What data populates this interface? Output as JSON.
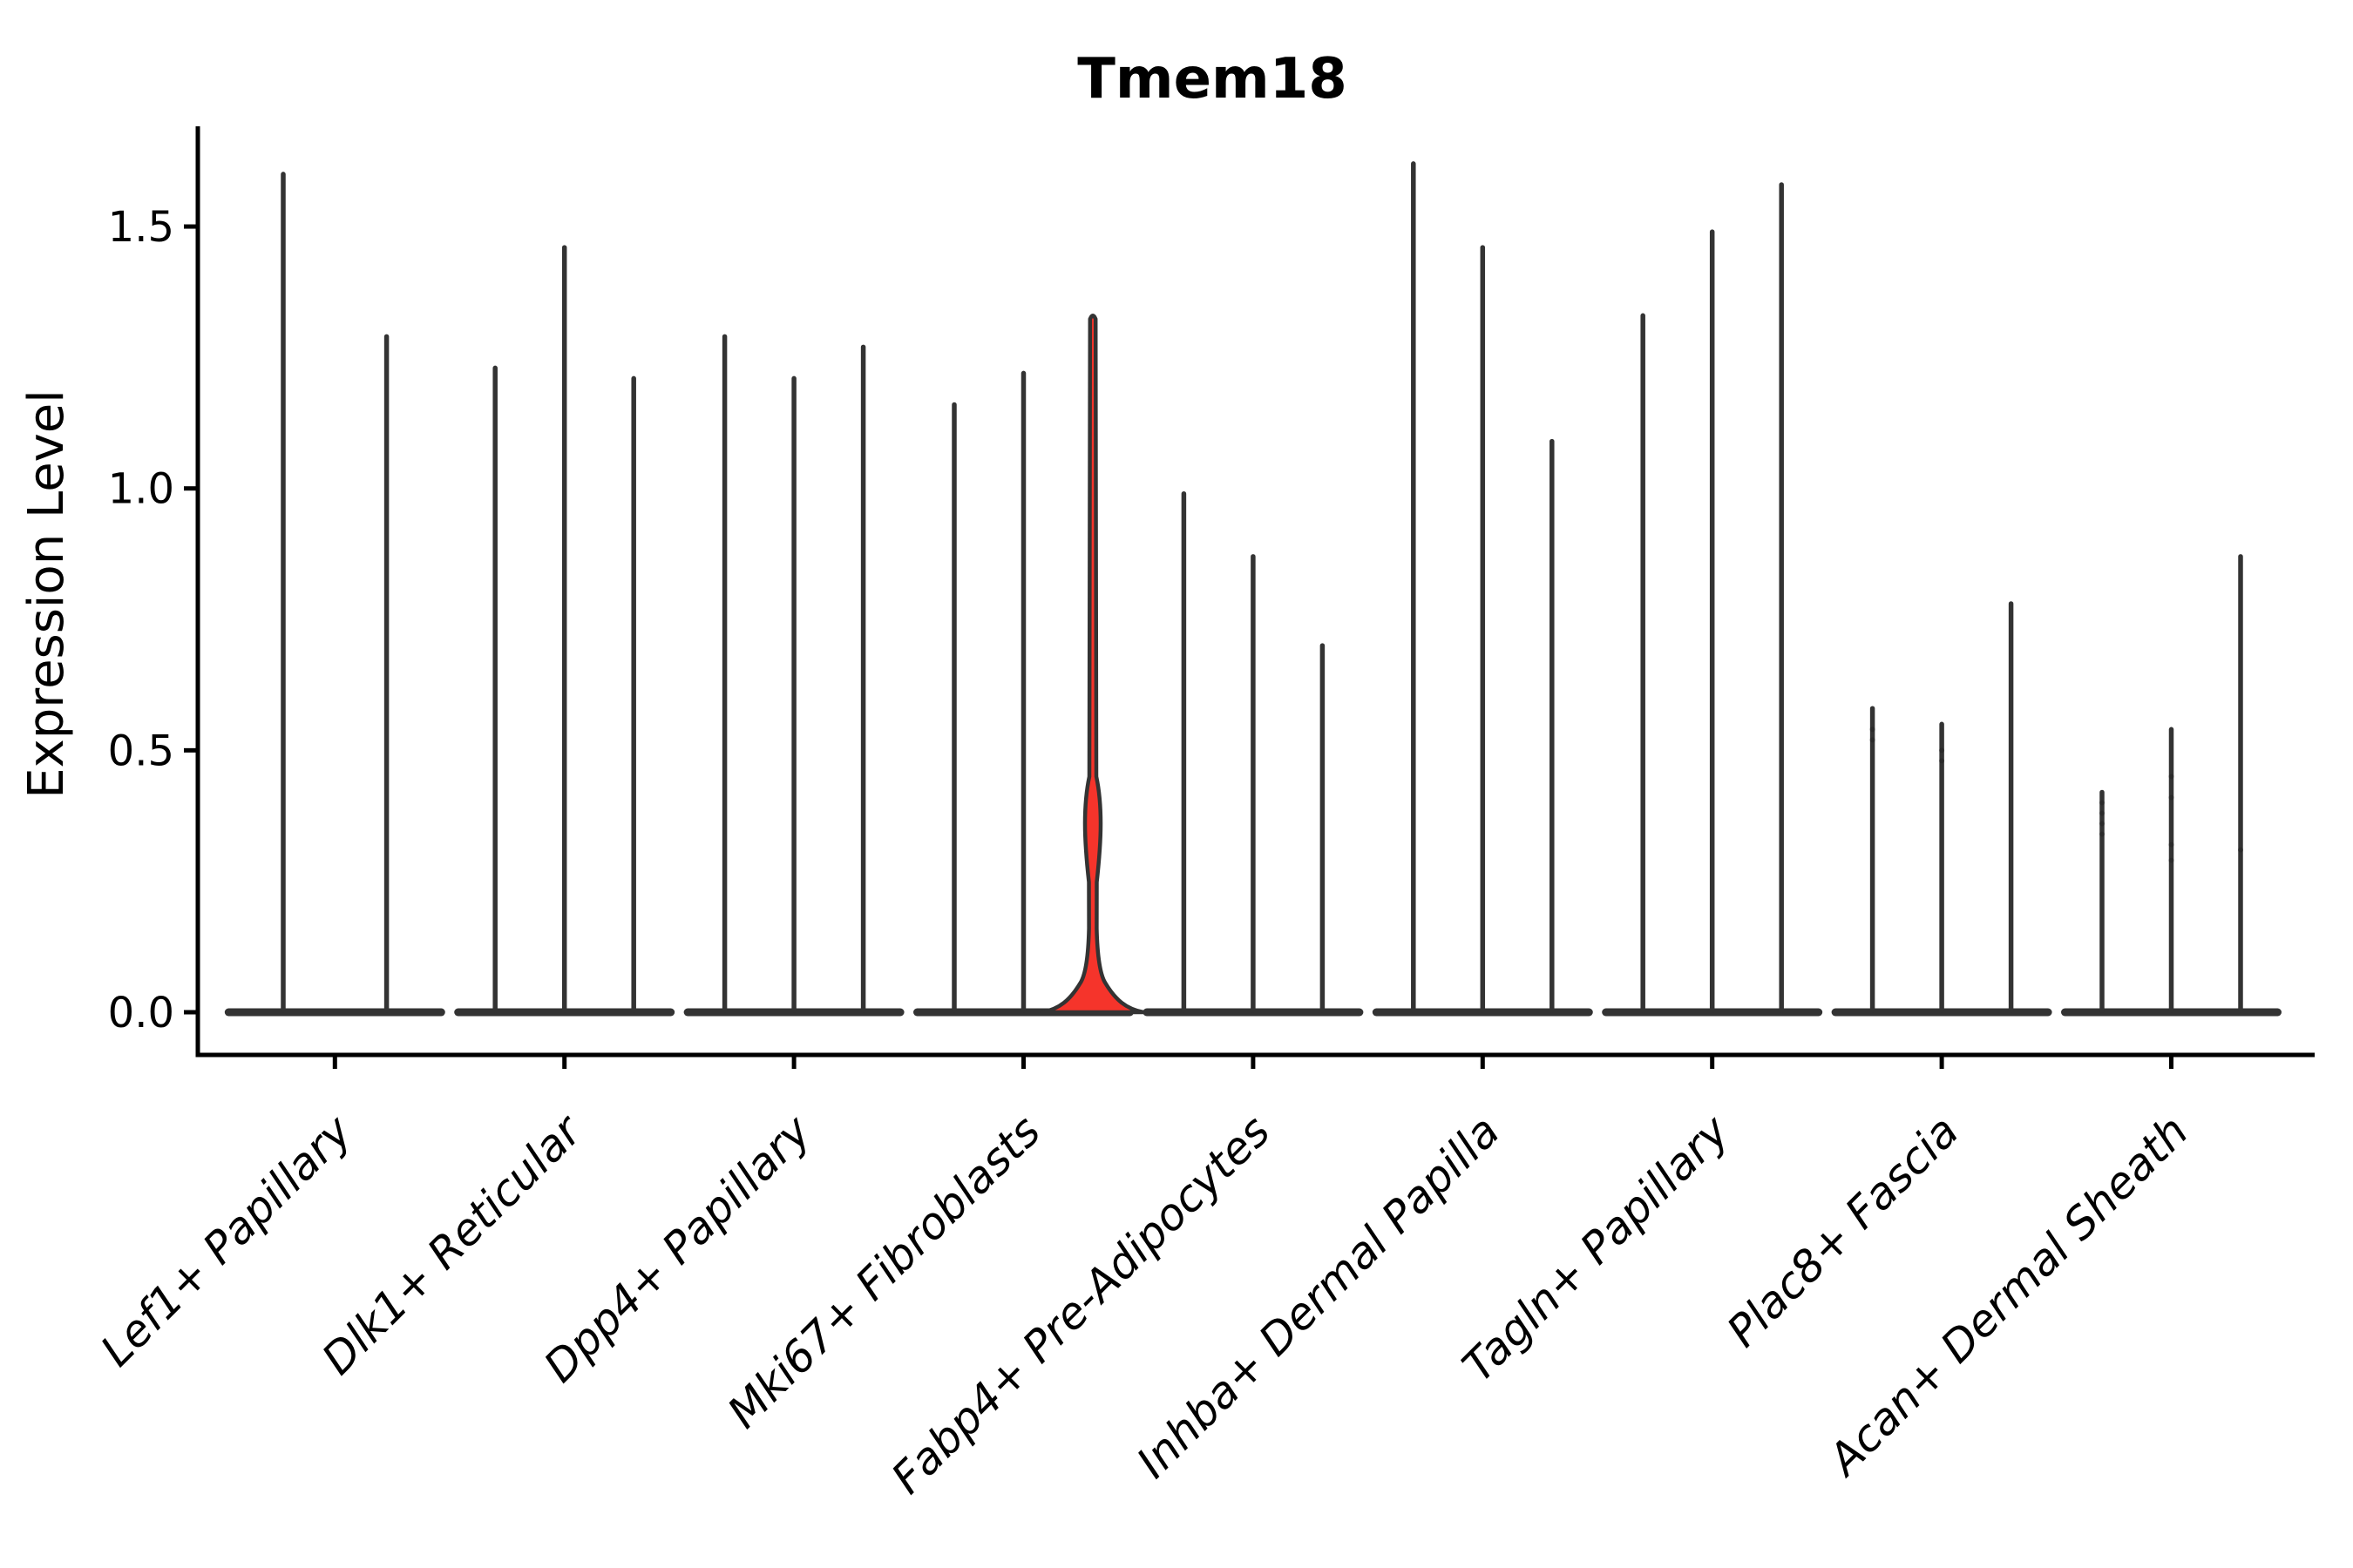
{
  "figure": {
    "background": "#ffffff"
  },
  "chart_data": {
    "type": "violin",
    "title": "Tmem18",
    "ylabel": "Expression Level",
    "xlabel": "",
    "yticks": [
      0.0,
      0.5,
      1.0,
      1.5
    ],
    "ytick_labels": [
      "0.0",
      "0.5",
      "1.0",
      "1.5"
    ],
    "ylim": [
      -0.08,
      1.69
    ],
    "grid": false,
    "legend": "none",
    "violin_line_color": "#333333",
    "axis_color": "#000000",
    "text_color": "#000000",
    "highlight_fill": "#f5342b",
    "groups": [
      {
        "label": "Lef1+ Papillary",
        "violin_maxima": [
          1.6,
          1.29
        ]
      },
      {
        "label": "Dlk1+ Reticular",
        "violin_maxima": [
          1.23,
          1.46,
          1.21
        ]
      },
      {
        "label": "Dpp4+ Papillary",
        "violin_maxima": [
          1.29,
          1.21,
          1.27
        ]
      },
      {
        "label": "Mki67+ Fibroblasts",
        "violin_maxima": [
          1.16,
          1.22,
          1.33
        ],
        "highlight_index": 2
      },
      {
        "label": "Fabp4+ Pre-Adipocytes",
        "violin_maxima": [
          0.99,
          0.87,
          0.7
        ]
      },
      {
        "label": "Inhba+ Dermal Papilla",
        "violin_maxima": [
          1.62,
          1.46,
          1.09
        ]
      },
      {
        "label": "Tagln+ Papillary",
        "violin_maxima": [
          1.33,
          1.49,
          1.58
        ]
      },
      {
        "label": "Plac8+ Fascia",
        "violin_maxima": [
          0.58,
          0.55,
          0.78
        ],
        "dots": [
          [
            0.52,
            0.54
          ],
          [
            0.48,
            0.5
          ],
          []
        ]
      },
      {
        "label": "Acan+ Dermal Sheath",
        "violin_maxima": [
          0.42,
          0.54,
          0.87
        ],
        "dots": [
          [
            0.34,
            0.36,
            0.38,
            0.4
          ],
          [
            0.29,
            0.32,
            0.41,
            0.45
          ],
          [
            0.31
          ]
        ]
      }
    ],
    "highlight_violin": {
      "group": "Mki67+ Fibroblasts",
      "index": 2,
      "max": 1.33,
      "base_bulge_top_value": 0.085,
      "lens_bulge_range": [
        0.27,
        0.45
      ]
    }
  }
}
